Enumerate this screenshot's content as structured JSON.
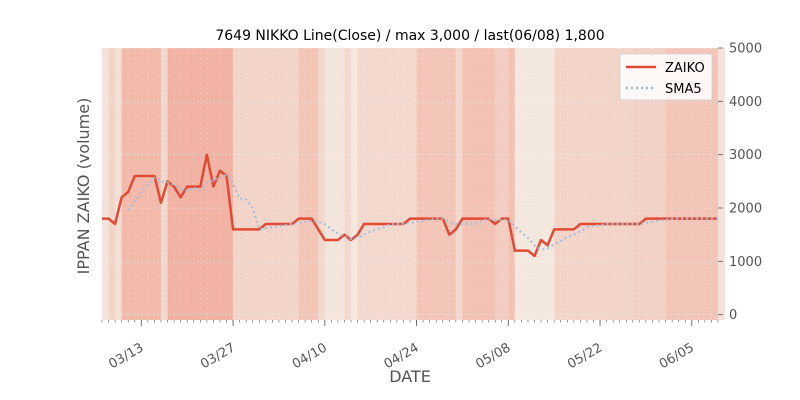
{
  "chart_data": {
    "type": "line",
    "title": "7649 NIKKO Line(Close) / max 3,000 / last(06/08) 1,800",
    "xlabel": "DATE",
    "ylabel": "IPPAN ZAIKO (volume)",
    "ylim": [
      -100,
      5000
    ],
    "y_ticks": [
      0,
      1000,
      2000,
      3000,
      4000,
      5000
    ],
    "y_axis_side": "right",
    "x_tick_labels": [
      "03/13",
      "03/27",
      "04/10",
      "04/24",
      "05/08",
      "05/22",
      "06/05"
    ],
    "x_tick_dates": [
      "2022-03-13",
      "2022-03-27",
      "2022-04-10",
      "2022-04-24",
      "2022-05-08",
      "2022-05-22",
      "2022-06-05"
    ],
    "xlim": [
      "2022-03-07",
      "2022-06-09"
    ],
    "grid": true,
    "legend_position": "top-right",
    "background_bands_note": "colored vertical background shading per day; intensity higher in early-March to late-March period",
    "background_bands": [
      {
        "from": "2022-03-07",
        "to": "2022-03-08",
        "level": 0.15
      },
      {
        "from": "2022-03-08",
        "to": "2022-03-09",
        "level": 0.35
      },
      {
        "from": "2022-03-09",
        "to": "2022-03-10",
        "level": 0.2
      },
      {
        "from": "2022-03-10",
        "to": "2022-03-16",
        "level": 0.7
      },
      {
        "from": "2022-03-16",
        "to": "2022-03-17",
        "level": 0.3
      },
      {
        "from": "2022-03-17",
        "to": "2022-03-27",
        "level": 0.8
      },
      {
        "from": "2022-03-27",
        "to": "2022-04-06",
        "level": 0.35
      },
      {
        "from": "2022-04-06",
        "to": "2022-04-09",
        "level": 0.55
      },
      {
        "from": "2022-04-09",
        "to": "2022-04-10",
        "level": 0.3
      },
      {
        "from": "2022-04-10",
        "to": "2022-04-13",
        "level": 0.12
      },
      {
        "from": "2022-04-13",
        "to": "2022-04-14",
        "level": 0.3
      },
      {
        "from": "2022-04-14",
        "to": "2022-04-15",
        "level": 0.08
      },
      {
        "from": "2022-04-15",
        "to": "2022-04-24",
        "level": 0.3
      },
      {
        "from": "2022-04-24",
        "to": "2022-04-30",
        "level": 0.55
      },
      {
        "from": "2022-04-30",
        "to": "2022-05-01",
        "level": 0.3
      },
      {
        "from": "2022-05-01",
        "to": "2022-05-06",
        "level": 0.6
      },
      {
        "from": "2022-05-06",
        "to": "2022-05-08",
        "level": 0.45
      },
      {
        "from": "2022-05-08",
        "to": "2022-05-09",
        "level": 0.6
      },
      {
        "from": "2022-05-09",
        "to": "2022-05-15",
        "level": 0.1
      },
      {
        "from": "2022-05-15",
        "to": "2022-05-27",
        "level": 0.35
      },
      {
        "from": "2022-05-27",
        "to": "2022-06-01",
        "level": 0.4
      },
      {
        "from": "2022-06-01",
        "to": "2022-06-09",
        "level": 0.55
      },
      {
        "from": "2022-06-09",
        "to": "2022-06-10",
        "level": 0.15
      }
    ],
    "x": [
      "2022-03-07",
      "2022-03-08",
      "2022-03-09",
      "2022-03-10",
      "2022-03-11",
      "2022-03-12",
      "2022-03-13",
      "2022-03-14",
      "2022-03-15",
      "2022-03-16",
      "2022-03-17",
      "2022-03-18",
      "2022-03-19",
      "2022-03-20",
      "2022-03-21",
      "2022-03-22",
      "2022-03-23",
      "2022-03-24",
      "2022-03-25",
      "2022-03-26",
      "2022-03-27",
      "2022-03-28",
      "2022-03-29",
      "2022-03-30",
      "2022-03-31",
      "2022-04-01",
      "2022-04-02",
      "2022-04-03",
      "2022-04-04",
      "2022-04-05",
      "2022-04-06",
      "2022-04-07",
      "2022-04-08",
      "2022-04-09",
      "2022-04-10",
      "2022-04-11",
      "2022-04-12",
      "2022-04-13",
      "2022-04-14",
      "2022-04-15",
      "2022-04-16",
      "2022-04-17",
      "2022-04-18",
      "2022-04-19",
      "2022-04-20",
      "2022-04-21",
      "2022-04-22",
      "2022-04-23",
      "2022-04-24",
      "2022-04-25",
      "2022-04-26",
      "2022-04-27",
      "2022-04-28",
      "2022-04-29",
      "2022-04-30",
      "2022-05-01",
      "2022-05-02",
      "2022-05-03",
      "2022-05-04",
      "2022-05-05",
      "2022-05-06",
      "2022-05-07",
      "2022-05-08",
      "2022-05-09",
      "2022-05-10",
      "2022-05-11",
      "2022-05-12",
      "2022-05-13",
      "2022-05-14",
      "2022-05-15",
      "2022-05-16",
      "2022-05-17",
      "2022-05-18",
      "2022-05-19",
      "2022-05-20",
      "2022-05-21",
      "2022-05-22",
      "2022-05-23",
      "2022-05-24",
      "2022-05-25",
      "2022-05-26",
      "2022-05-27",
      "2022-05-28",
      "2022-05-29",
      "2022-05-30",
      "2022-05-31",
      "2022-06-01",
      "2022-06-02",
      "2022-06-03",
      "2022-06-04",
      "2022-06-05",
      "2022-06-06",
      "2022-06-07",
      "2022-06-08",
      "2022-06-09"
    ],
    "series": [
      {
        "name": "ZAIKO",
        "color": "#e24a33",
        "style": "solid",
        "values": [
          1800,
          1800,
          1700,
          2200,
          2300,
          2600,
          2600,
          2600,
          2600,
          2100,
          2500,
          2400,
          2200,
          2400,
          2400,
          2400,
          3000,
          2400,
          2700,
          2600,
          1600,
          1600,
          1600,
          1600,
          1600,
          1700,
          1700,
          1700,
          1700,
          1700,
          1800,
          1800,
          1800,
          1600,
          1400,
          1400,
          1400,
          1500,
          1400,
          1500,
          1700,
          1700,
          1700,
          1700,
          1700,
          1700,
          1700,
          1800,
          1800,
          1800,
          1800,
          1800,
          1800,
          1500,
          1600,
          1800,
          1800,
          1800,
          1800,
          1800,
          1700,
          1800,
          1800,
          1200,
          1200,
          1200,
          1100,
          1400,
          1300,
          1600,
          1600,
          1600,
          1600,
          1700,
          1700,
          1700,
          1700,
          1700,
          1700,
          1700,
          1700,
          1700,
          1700,
          1800,
          1800,
          1800,
          1800,
          1800,
          1800,
          1800,
          1800,
          1800,
          1800,
          1800,
          1800
        ]
      },
      {
        "name": "SMA5",
        "color": "#9ebde0",
        "style": "dotted",
        "values": [
          null,
          null,
          null,
          null,
          1960,
          2120,
          2300,
          2460,
          2560,
          2500,
          2480,
          2440,
          2360,
          2320,
          2380,
          2340,
          2480,
          2520,
          2580,
          2620,
          2460,
          2180,
          2160,
          2000,
          1600,
          1620,
          1640,
          1660,
          1680,
          1700,
          1720,
          1740,
          1760,
          1740,
          1700,
          1600,
          1520,
          1460,
          1420,
          1440,
          1500,
          1560,
          1600,
          1640,
          1700,
          1700,
          1700,
          1720,
          1740,
          1760,
          1780,
          1800,
          1800,
          1740,
          1700,
          1700,
          1700,
          1700,
          1760,
          1800,
          1780,
          1780,
          1780,
          1660,
          1540,
          1440,
          1300,
          1220,
          1240,
          1320,
          1380,
          1460,
          1500,
          1560,
          1640,
          1660,
          1680,
          1700,
          1700,
          1700,
          1700,
          1700,
          1700,
          1720,
          1740,
          1760,
          1780,
          1800,
          1800,
          1800,
          1800,
          1800,
          1800,
          1800,
          1800
        ]
      }
    ]
  },
  "colors": {
    "shade_base": "#f4eee6",
    "shade_peak": "#f2a493",
    "axis_text": "#555555",
    "grid": "#ffffff"
  }
}
